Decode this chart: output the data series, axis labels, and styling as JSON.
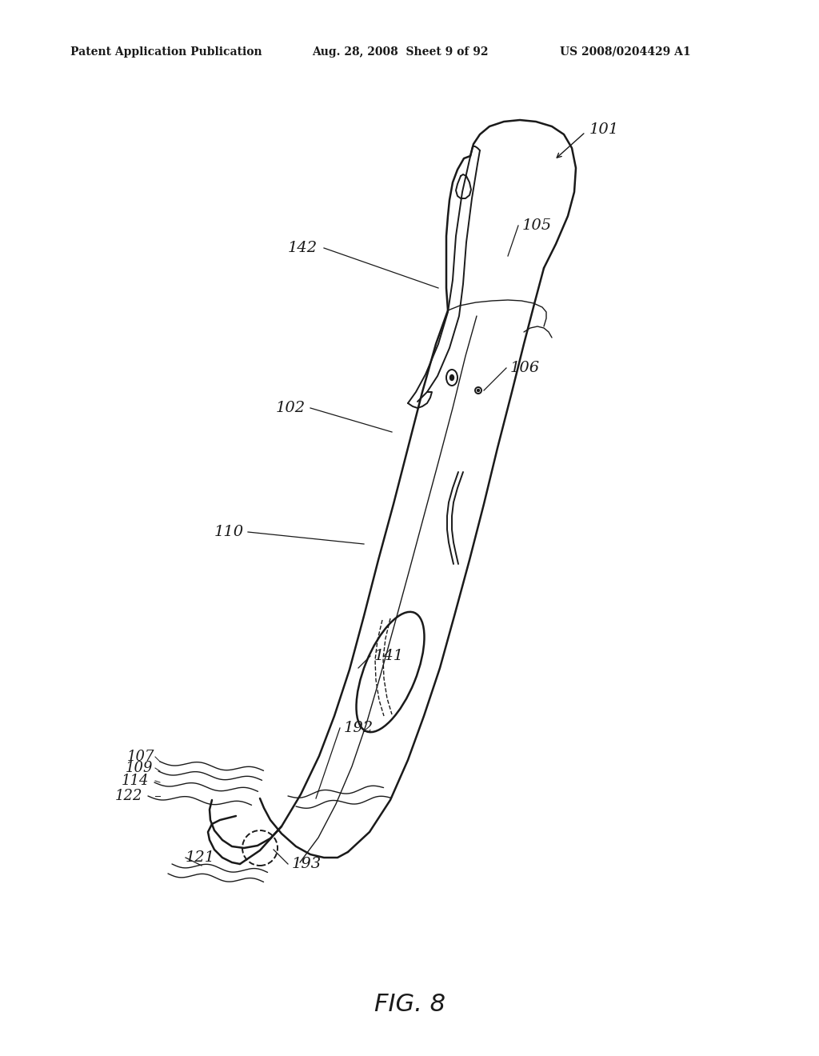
{
  "background_color": "#ffffff",
  "line_color": "#1a1a1a",
  "text_color": "#1a1a1a",
  "header_left": "Patent Application Publication",
  "header_mid": "Aug. 28, 2008  Sheet 9 of 92",
  "header_right": "US 2008/0204429 A1",
  "fig_label": "FIG. 8"
}
